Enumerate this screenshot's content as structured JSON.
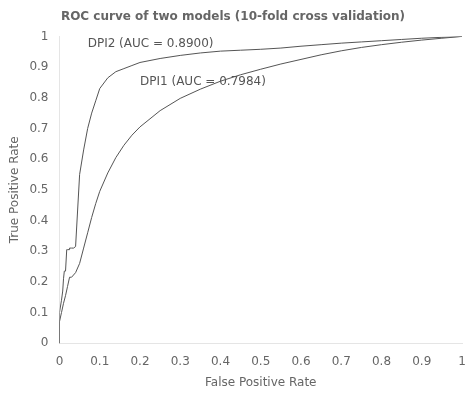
{
  "chart_data": {
    "type": "line",
    "title": "ROC curve of two models (10-fold cross validation)",
    "x_label": "False Positive Rate",
    "y_label": "True Positive Rate",
    "color": "#555555",
    "xlim": [
      0,
      1
    ],
    "ylim": [
      0,
      1
    ],
    "xticks": [
      0,
      0.1,
      0.2,
      0.3,
      0.4,
      0.5,
      0.6,
      0.7,
      0.8,
      0.9,
      1
    ],
    "yticks": [
      0,
      0.1,
      0.2,
      0.3,
      0.4,
      0.5,
      0.6,
      0.7,
      0.8,
      0.9,
      1
    ],
    "grid": false,
    "series": [
      {
        "x": [
          0.0,
          0.0,
          0.0,
          0.005,
          0.008,
          0.01,
          0.012,
          0.015,
          0.018,
          0.02,
          0.025,
          0.025,
          0.03,
          0.035,
          0.04,
          0.05,
          0.06,
          0.07,
          0.08,
          0.09,
          0.1,
          0.12,
          0.14,
          0.16,
          0.18,
          0.2,
          0.25,
          0.3,
          0.35,
          0.4,
          0.45,
          0.5,
          0.55,
          0.6,
          0.65,
          0.7,
          0.75,
          0.8,
          0.85,
          0.9,
          0.95,
          1.0
        ],
        "values": [
          0.0,
          0.05,
          0.1,
          0.14,
          0.17,
          0.21,
          0.235,
          0.235,
          0.305,
          0.305,
          0.305,
          0.31,
          0.31,
          0.31,
          0.315,
          0.55,
          0.63,
          0.7,
          0.75,
          0.79,
          0.83,
          0.865,
          0.885,
          0.895,
          0.905,
          0.915,
          0.928,
          0.938,
          0.946,
          0.952,
          0.955,
          0.958,
          0.962,
          0.968,
          0.973,
          0.978,
          0.982,
          0.986,
          0.99,
          0.994,
          0.997,
          1.0
        ]
      },
      {
        "x": [
          0.0,
          0.0,
          0.005,
          0.01,
          0.015,
          0.02,
          0.025,
          0.03,
          0.04,
          0.05,
          0.06,
          0.07,
          0.08,
          0.09,
          0.1,
          0.12,
          0.14,
          0.16,
          0.18,
          0.2,
          0.25,
          0.3,
          0.35,
          0.4,
          0.45,
          0.5,
          0.55,
          0.6,
          0.65,
          0.7,
          0.75,
          0.8,
          0.85,
          0.9,
          0.95,
          1.0
        ],
        "values": [
          0.0,
          0.07,
          0.1,
          0.13,
          0.155,
          0.185,
          0.215,
          0.215,
          0.23,
          0.26,
          0.31,
          0.36,
          0.41,
          0.455,
          0.495,
          0.555,
          0.605,
          0.645,
          0.678,
          0.705,
          0.758,
          0.798,
          0.828,
          0.854,
          0.875,
          0.893,
          0.91,
          0.925,
          0.94,
          0.953,
          0.964,
          0.973,
          0.981,
          0.988,
          0.994,
          1.0
        ]
      }
    ],
    "annotations": [
      {
        "text": "DPI2 (AUC = 0.8900)",
        "x": 0.07,
        "y": 0.965
      },
      {
        "text": "DPI1 (AUC = 0.7984)",
        "x": 0.2,
        "y": 0.84
      }
    ]
  }
}
